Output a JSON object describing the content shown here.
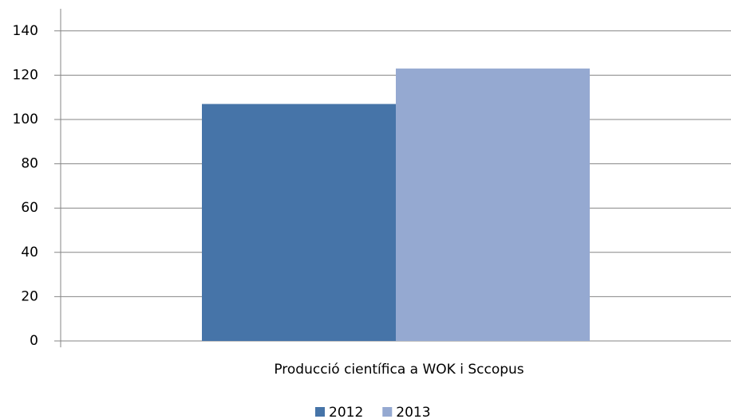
{
  "chart_data": {
    "type": "bar",
    "categories": [
      "Producció científica a WOK i Sccopus"
    ],
    "series": [
      {
        "name": "2012",
        "color": "#4674a8",
        "values": [
          107
        ]
      },
      {
        "name": "2013",
        "color": "#95a9d1",
        "values": [
          123
        ]
      }
    ],
    "ylim": [
      0,
      150
    ],
    "yticks": [
      0,
      20,
      40,
      60,
      80,
      100,
      120,
      140
    ],
    "grid": true,
    "legend": "bottom"
  }
}
